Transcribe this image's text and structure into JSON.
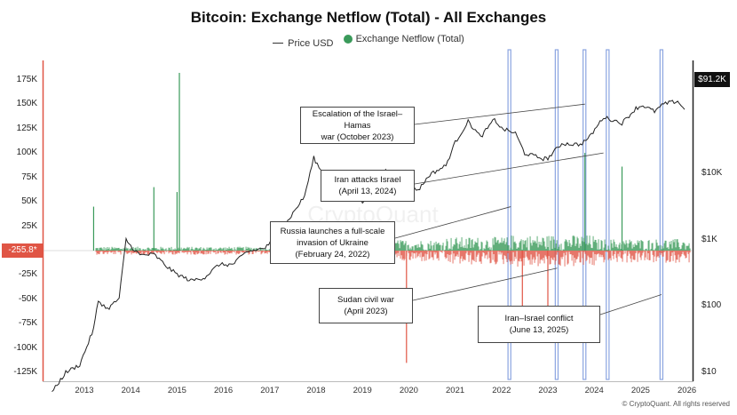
{
  "chart_data": {
    "type": "line",
    "title": "Bitcoin: Exchange Netflow (Total) - All Exchanges",
    "legend": [
      {
        "label": "Price USD",
        "color": "#333333",
        "marker": "line"
      },
      {
        "label": "Exchange Netflow (Total)",
        "color": "#3a9a5a",
        "marker": "dot"
      }
    ],
    "legend_placement": "top-center",
    "grid": false,
    "x_ticks": [
      "2013",
      "2014",
      "2015",
      "2016",
      "2017",
      "2018",
      "2019",
      "2020",
      "2021",
      "2022",
      "2023",
      "2024",
      "2025",
      "2026"
    ],
    "x_range": [
      2012.3,
      2026.0
    ],
    "y_left": {
      "ticks": [
        "175K",
        "150K",
        "125K",
        "100K",
        "75K",
        "50K",
        "25K",
        "-25K",
        "-50K",
        "-75K",
        "-100K",
        "-125K"
      ],
      "range": [
        -125000,
        175000
      ]
    },
    "y_right": {
      "ticks": [
        "$10K",
        "$1K",
        "$100",
        "$10"
      ],
      "scale": "log",
      "range": [
        5,
        150000
      ]
    },
    "badges": {
      "left_value": "-255.8*",
      "right_price": "$91.2K"
    },
    "highlight_bands": [
      {
        "from": 2022.14,
        "to": 2022.2
      },
      {
        "from": 2023.16,
        "to": 2023.22
      },
      {
        "from": 2023.76,
        "to": 2023.82
      },
      {
        "from": 2024.26,
        "to": 2024.32
      },
      {
        "from": 2025.42,
        "to": 2025.48
      }
    ],
    "annotations": [
      {
        "text": [
          "Escalation of the Israel–Hamas",
          "war (October 2023)"
        ],
        "target": [
          2023.8,
          150000
        ]
      },
      {
        "text": [
          "Iran attacks Israel",
          "(April 13, 2024)"
        ],
        "target": [
          2024.2,
          100000
        ]
      },
      {
        "text": [
          "Russia launches a full-scale",
          "invasion of Ukraine",
          "(February 24, 2022)"
        ],
        "target": [
          2022.2,
          45000
        ]
      },
      {
        "text": [
          "Sudan civil war",
          "(April 2023)"
        ],
        "target": [
          2023.2,
          -18000
        ]
      },
      {
        "text": [
          "Iran–Israel conflict",
          "(June 13, 2025)"
        ],
        "target": [
          2025.45,
          -45000
        ]
      }
    ],
    "price_series": {
      "name": "Price USD",
      "x": [
        2012.3,
        2012.6,
        2012.9,
        2013.2,
        2013.3,
        2013.5,
        2013.75,
        2013.9,
        2014.0,
        2014.2,
        2014.5,
        2014.8,
        2015.0,
        2015.3,
        2015.6,
        2015.9,
        2016.2,
        2016.5,
        2016.9,
        2017.2,
        2017.5,
        2017.75,
        2017.95,
        2018.1,
        2018.3,
        2018.6,
        2018.9,
        2019.0,
        2019.3,
        2019.5,
        2019.8,
        2020.0,
        2020.2,
        2020.45,
        2020.8,
        2021.0,
        2021.28,
        2021.55,
        2021.85,
        2022.0,
        2022.3,
        2022.5,
        2022.9,
        2023.0,
        2023.3,
        2023.7,
        2023.9,
        2024.2,
        2024.6,
        2024.9,
        2025.05,
        2025.3,
        2025.5,
        2025.8,
        2025.95
      ],
      "y": [
        5,
        10,
        13,
        45,
        120,
        90,
        130,
        1000,
        800,
        580,
        600,
        380,
        300,
        240,
        270,
        420,
        420,
        650,
        750,
        1200,
        2500,
        4500,
        17000,
        11000,
        9000,
        6500,
        4000,
        3700,
        5000,
        11000,
        8500,
        7300,
        5500,
        9500,
        13000,
        29000,
        60000,
        35000,
        65000,
        47000,
        40000,
        20000,
        16500,
        16800,
        28000,
        27000,
        35000,
        70000,
        57000,
        95000,
        105000,
        85000,
        110000,
        122000,
        91200
      ]
    },
    "netflow_notable": [
      {
        "x": 2013.2,
        "value": 45000
      },
      {
        "x": 2015.05,
        "value": 182000
      },
      {
        "x": 2014.5,
        "value": 65000
      },
      {
        "x": 2015.0,
        "value": 60000
      },
      {
        "x": 2019.95,
        "value": -115000
      },
      {
        "x": 2023.8,
        "value": 100000
      },
      {
        "x": 2024.6,
        "value": 86000
      },
      {
        "x": 2022.45,
        "value": -60000
      },
      {
        "x": 2023.0,
        "value": -58000
      }
    ],
    "copyright": "© CryptoQuant. All rights reserved"
  }
}
